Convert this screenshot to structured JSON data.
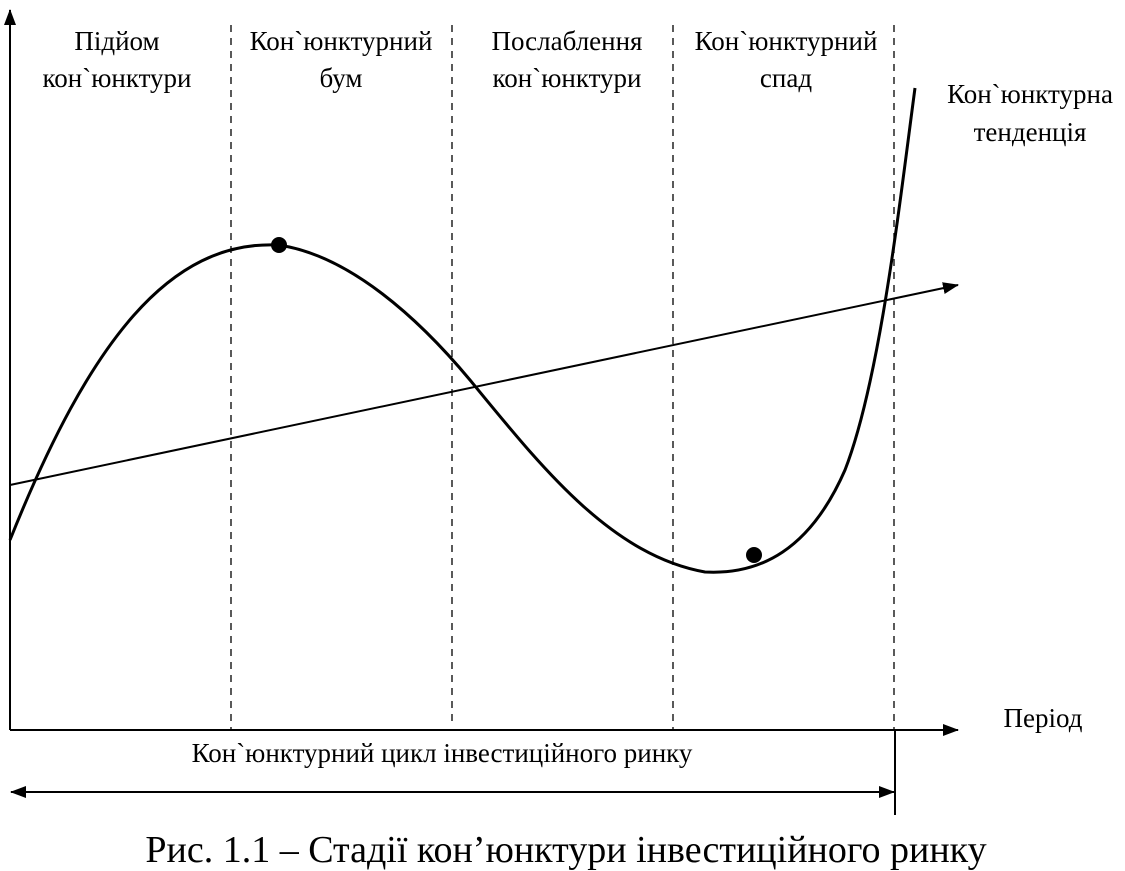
{
  "diagram": {
    "phases": [
      {
        "line1": "Підйом",
        "line2": "кон`юнктури"
      },
      {
        "line1": "Кон`юнктурний",
        "line2": "бум"
      },
      {
        "line1": "Послаблення",
        "line2": "кон`юнктури"
      },
      {
        "line1": "Кон`юнктурний",
        "line2": "спад"
      }
    ],
    "trend_label": {
      "line1": "Кон`юнктурна",
      "line2": "тенденція"
    },
    "x_axis_label": "Період",
    "cycle_label": "Кон`юнктурний цикл інвестиційного ринку",
    "caption": "Рис. 1.1 – Стадії кон’юнктури інвестиційного ринку"
  }
}
